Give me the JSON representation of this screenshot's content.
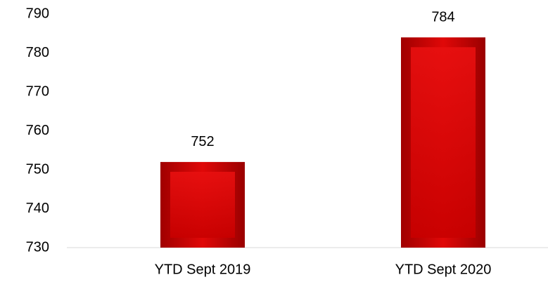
{
  "chart_data": {
    "type": "bar",
    "categories": [
      "YTD Sept 2019",
      "YTD Sept 2020"
    ],
    "values": [
      752,
      784
    ],
    "color": "#d90000",
    "ylim": [
      730,
      790
    ],
    "yticks": [
      730,
      740,
      750,
      760,
      770,
      780,
      790
    ],
    "grid": false
  }
}
